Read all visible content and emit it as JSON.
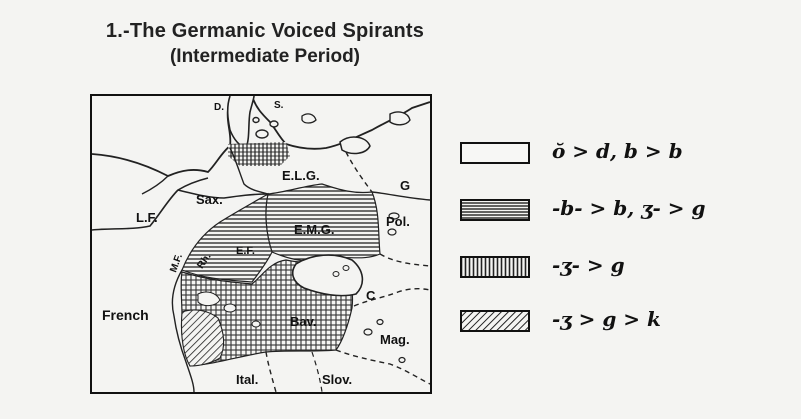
{
  "title": {
    "line1": "1.-The Germanic Voiced Spirants",
    "line2": "(Intermediate Period)"
  },
  "map": {
    "labels": {
      "d": "D.",
      "s": "S.",
      "elg": "E.L.G.",
      "sax": "Sax.",
      "g": "G",
      "lf": "L.F.",
      "pol": "Pol.",
      "emg": "E.M.G.",
      "mf": "M.F.",
      "rh": "Rh.",
      "ef": "E.F.",
      "french": "French",
      "c": "C",
      "bav": "Bav.",
      "mag": "Mag.",
      "ital": "Ital.",
      "slov": "Slov."
    }
  },
  "legend": [
    {
      "pattern": "blank",
      "label": "ŏ > d, b > b"
    },
    {
      "pattern": "horizontal-lines",
      "label": "-b- > b, ʒ- > g"
    },
    {
      "pattern": "vertical-lines",
      "label": "-ʒ- > g"
    },
    {
      "pattern": "diagonal-lines",
      "label": "-ʒ > g > k"
    }
  ]
}
